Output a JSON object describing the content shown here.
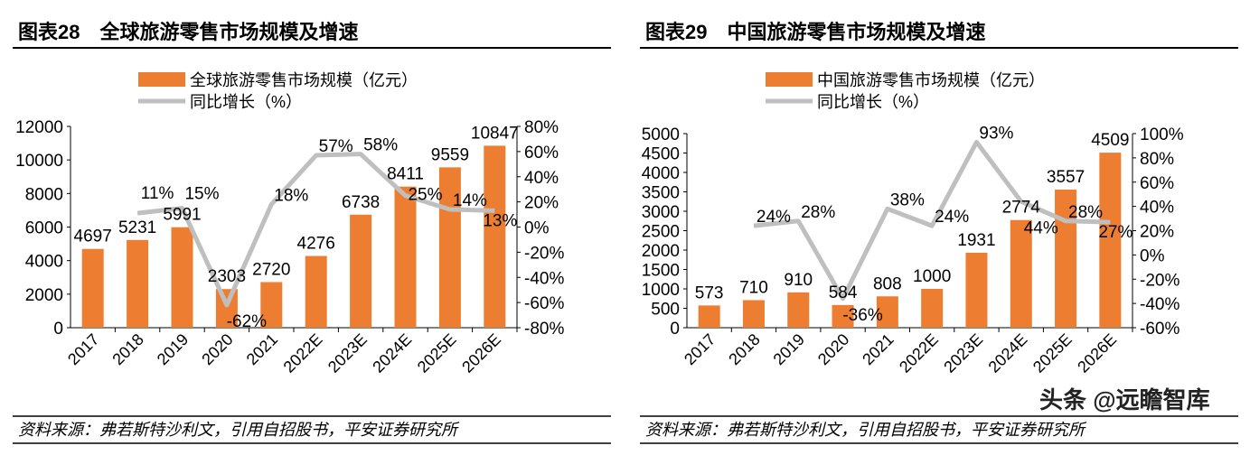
{
  "colors": {
    "bar": "#ED7D31",
    "line": "#BFBFBF",
    "text": "#000000"
  },
  "chart_data": [
    {
      "type": "bar+line",
      "title": "图表28　全球旅游零售市场规模及增速",
      "categories": [
        "2017",
        "2018",
        "2019",
        "2020",
        "2021",
        "2022E",
        "2023E",
        "2024E",
        "2025E",
        "2026E"
      ],
      "series": [
        {
          "name": "全球旅游零售市场规模（亿元）",
          "type": "bar",
          "axis": "left",
          "values": [
            4697,
            5231,
            5991,
            2303,
            2720,
            4276,
            6738,
            8411,
            9559,
            10847
          ],
          "labels": [
            "4697",
            "5231",
            "5991",
            "2303",
            "2720",
            "4276",
            "6738",
            "8411",
            "9559",
            "10847"
          ]
        },
        {
          "name": "同比增长（%）",
          "type": "line",
          "axis": "right",
          "values": [
            null,
            11,
            15,
            -62,
            18,
            57,
            58,
            25,
            14,
            13
          ],
          "labels": [
            "",
            "11%",
            "15%",
            "-62%",
            "18%",
            "57%",
            "58%",
            "25%",
            "14%",
            "13%"
          ]
        }
      ],
      "ylim": [
        0,
        12000
      ],
      "yticks": [
        "0",
        "2000",
        "4000",
        "6000",
        "8000",
        "10000",
        "12000"
      ],
      "y2lim": [
        -80,
        80
      ],
      "y2ticks": [
        "-80%",
        "-60%",
        "-40%",
        "-20%",
        "0%",
        "20%",
        "40%",
        "60%",
        "80%"
      ],
      "legend": "top",
      "grid": false,
      "source": "资料来源：弗若斯特沙利文，引用自招股书，平安证券研究所"
    },
    {
      "type": "bar+line",
      "title": "图表29　中国旅游零售市场规模及增速",
      "categories": [
        "2017",
        "2018",
        "2019",
        "2020",
        "2021",
        "2022E",
        "2023E",
        "2024E",
        "2025E",
        "2026E"
      ],
      "series": [
        {
          "name": "中国旅游零售市场规模（亿元）",
          "type": "bar",
          "axis": "left",
          "values": [
            573,
            710,
            910,
            584,
            808,
            1000,
            1931,
            2774,
            3557,
            4509
          ],
          "labels": [
            "573",
            "710",
            "910",
            "584",
            "808",
            "1000",
            "1931",
            "2774",
            "3557",
            "4509"
          ]
        },
        {
          "name": "同比增长（%）",
          "type": "line",
          "axis": "right",
          "values": [
            null,
            24,
            28,
            -36,
            38,
            24,
            93,
            44,
            28,
            27
          ],
          "labels": [
            "",
            "24%",
            "28%",
            "-36%",
            "38%",
            "24%",
            "93%",
            "44%",
            "28%",
            "27%"
          ]
        }
      ],
      "ylim": [
        0,
        5000
      ],
      "yticks": [
        "0",
        "500",
        "1000",
        "1500",
        "2000",
        "2500",
        "3000",
        "3500",
        "4000",
        "4500",
        "5000"
      ],
      "y2lim": [
        -60,
        100
      ],
      "y2ticks": [
        "-60%",
        "-40%",
        "-20%",
        "0%",
        "20%",
        "40%",
        "60%",
        "80%",
        "100%"
      ],
      "legend": "top",
      "grid": false,
      "source": "资料来源：弗若斯特沙利文，引用自招股书，平安证券研究所"
    }
  ],
  "watermark": "头条 @远瞻智库"
}
